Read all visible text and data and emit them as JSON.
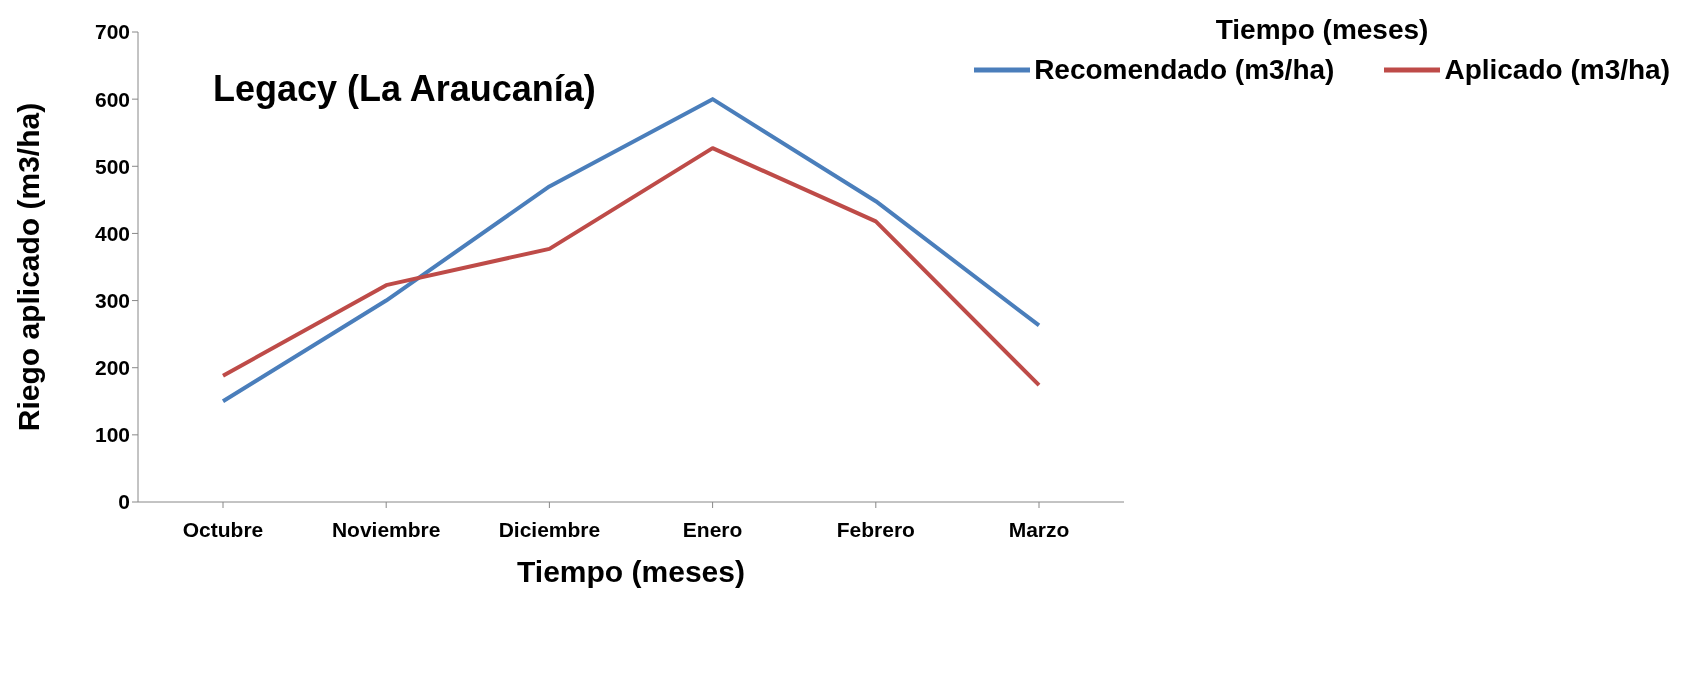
{
  "chart_data": {
    "type": "line",
    "title": "Legacy (La Araucanía)",
    "xlabel": "Tiempo (meses)",
    "ylabel": "Riego aplicado (m3/ha)",
    "legend_title": "Tiempo (meses)",
    "categories": [
      "Octubre",
      "Noviembre",
      "Diciembre",
      "Enero",
      "Febrero",
      "Marzo"
    ],
    "series": [
      {
        "name": "Recomendado (m3/ha)",
        "color": "#4a7ebb",
        "values": [
          150,
          300,
          470,
          600,
          448,
          263
        ]
      },
      {
        "name": "Aplicado (m3/ha)",
        "color": "#be4b48",
        "values": [
          188,
          323,
          377,
          527,
          418,
          174
        ]
      }
    ],
    "ylim": [
      0,
      700
    ],
    "yticks": [
      0,
      100,
      200,
      300,
      400,
      500,
      600,
      700
    ],
    "grid": false,
    "legend": "top right",
    "marker": "none",
    "line_style": "solid"
  }
}
